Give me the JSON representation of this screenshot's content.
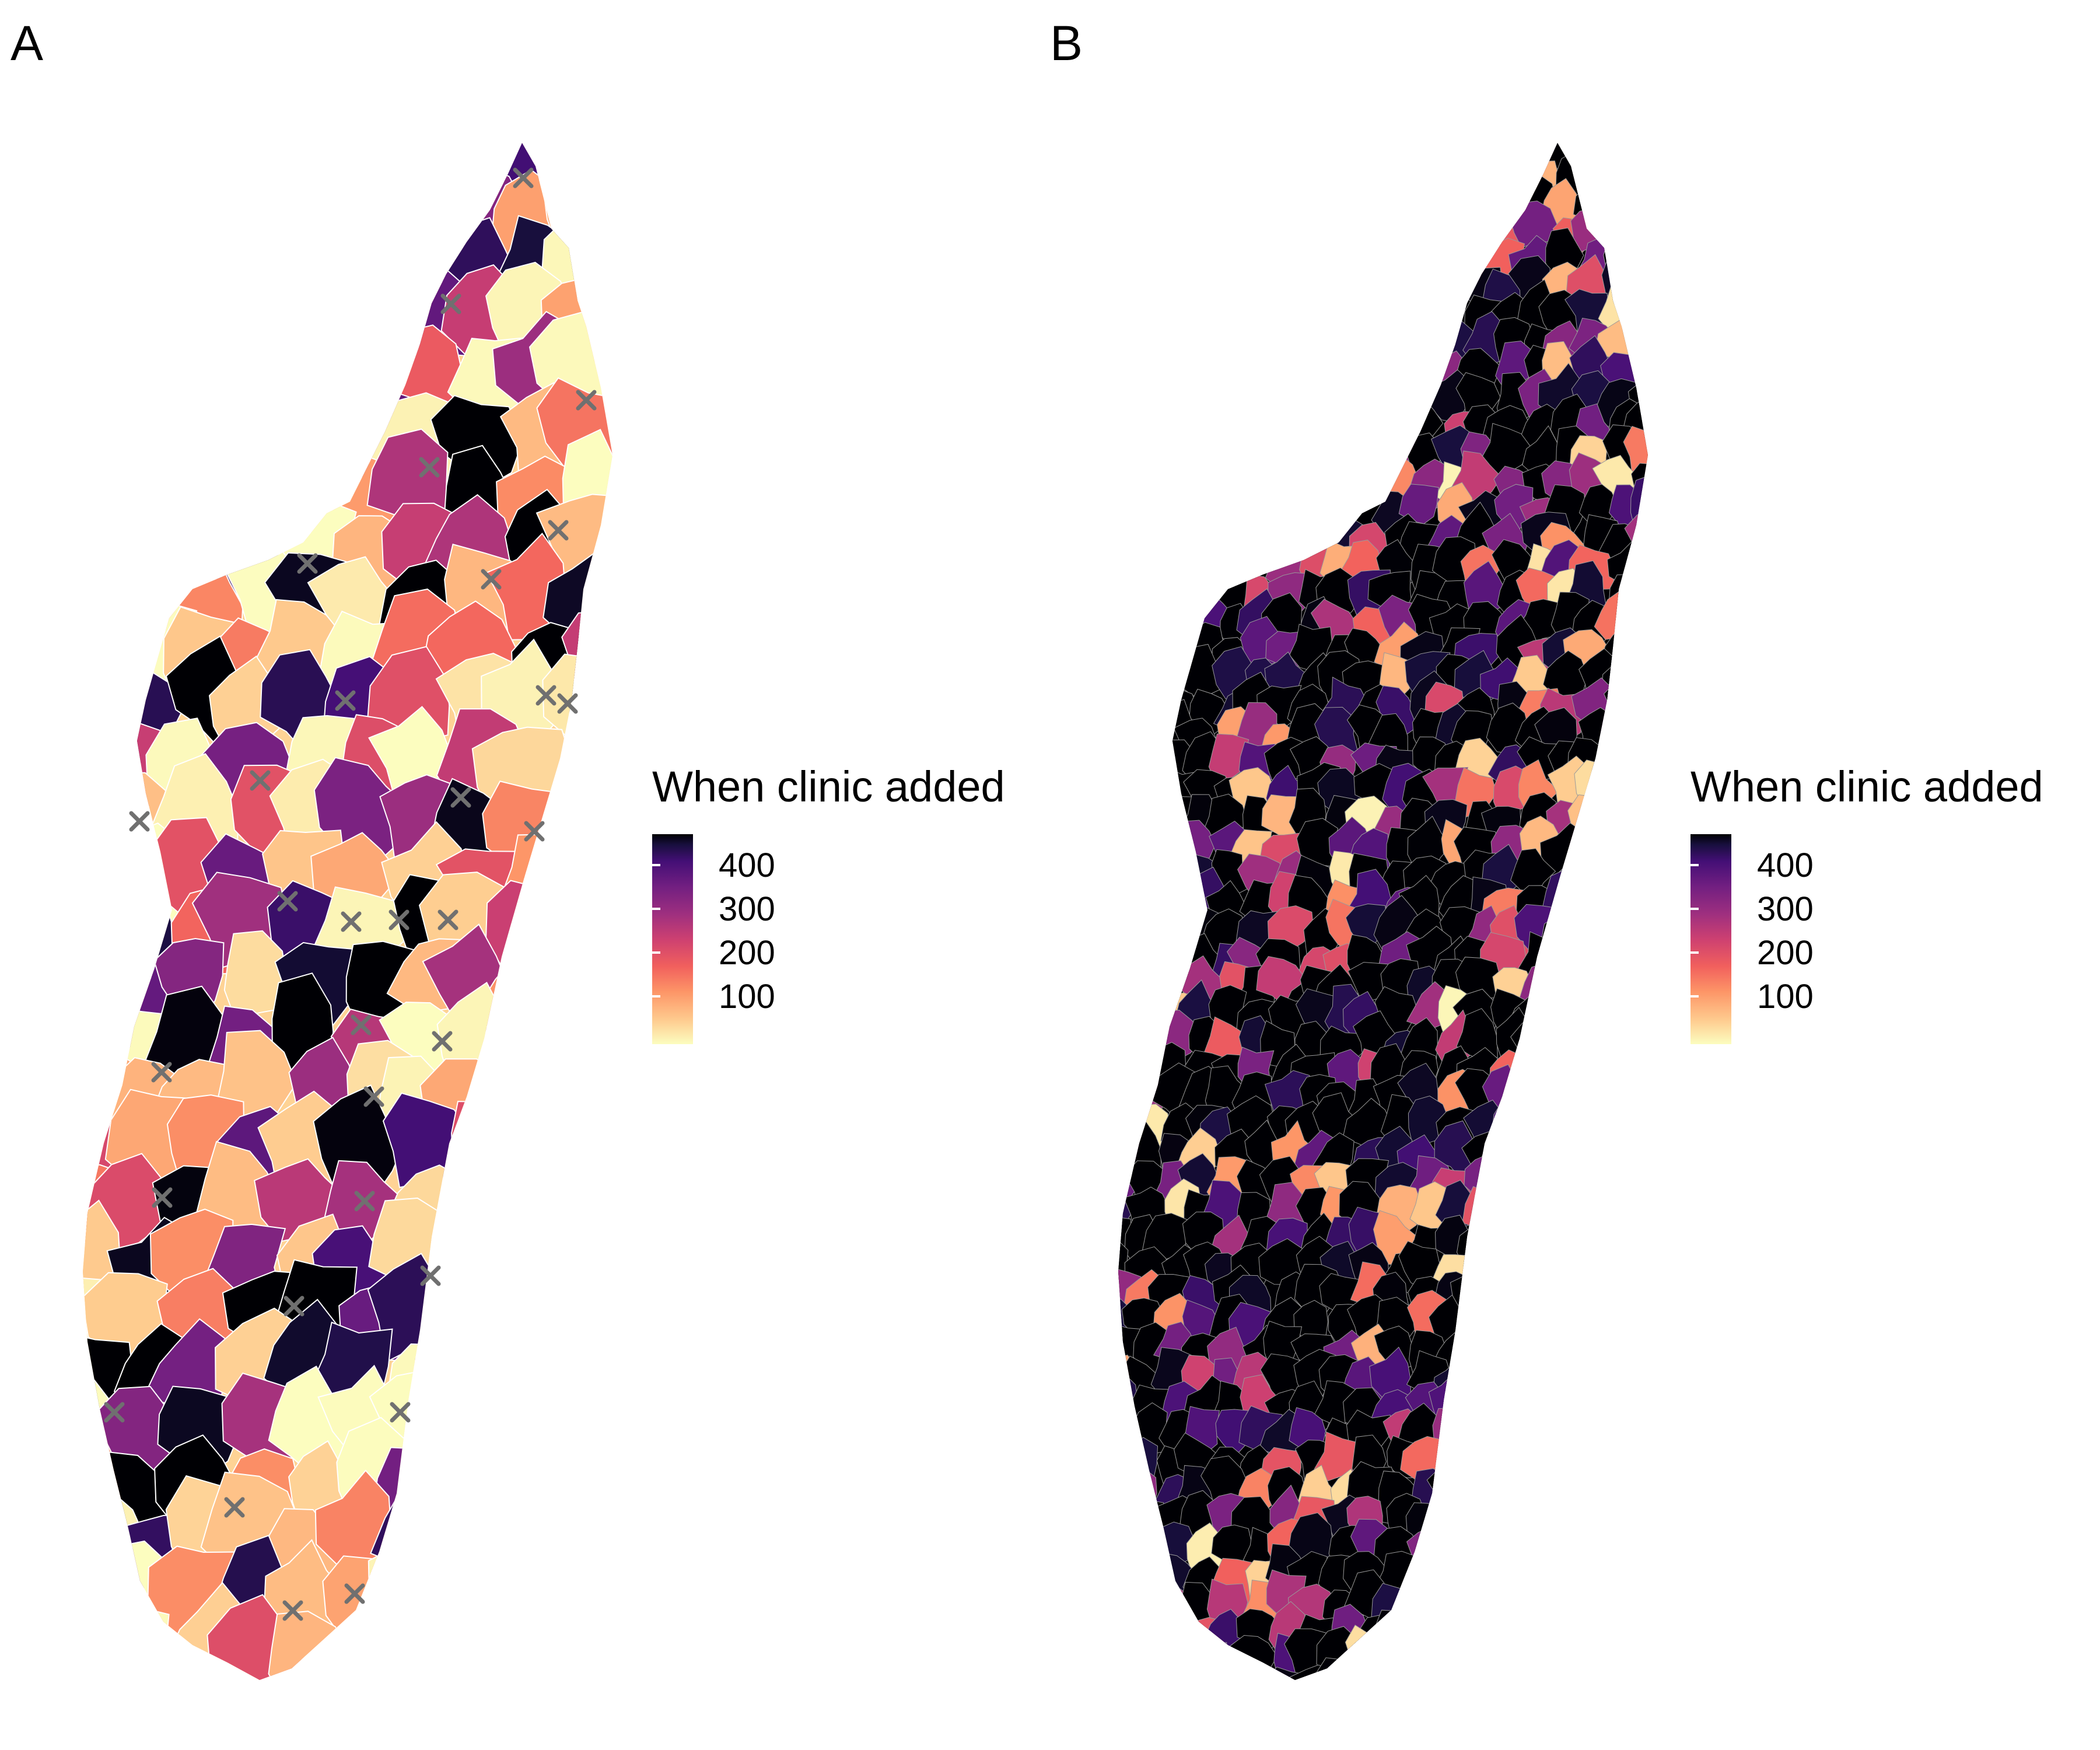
{
  "panels": [
    {
      "letter": "A",
      "legend": {
        "title": "When clinic added",
        "ticks": [
          {
            "label": "400",
            "value": 400
          },
          {
            "label": "300",
            "value": 300
          },
          {
            "label": "200",
            "value": 200
          },
          {
            "label": "100",
            "value": 100
          }
        ],
        "range": [
          0,
          440
        ]
      },
      "colorscale": [
        "#FCFDBF",
        "#FEC98D",
        "#FD9567",
        "#F1605D",
        "#CD4071",
        "#9E2F7F",
        "#721F81",
        "#440F76",
        "#180F3E",
        "#000004"
      ],
      "marker": {
        "symbol": "x",
        "color": "#707070"
      },
      "regions": "district choropleth with existing clinic locations marked"
    },
    {
      "letter": "B",
      "legend": {
        "title": "When clinic added",
        "ticks": [
          {
            "label": "400",
            "value": 400
          },
          {
            "label": "300",
            "value": 300
          },
          {
            "label": "200",
            "value": 200
          },
          {
            "label": "100",
            "value": 100
          }
        ],
        "range": [
          0,
          440
        ]
      },
      "colorscale": [
        "#FCFDBF",
        "#FEC98D",
        "#FD9567",
        "#F1605D",
        "#CD4071",
        "#9E2F7F",
        "#721F81",
        "#440F76",
        "#180F3E",
        "#000004"
      ],
      "regions": "commune choropleth"
    }
  ]
}
